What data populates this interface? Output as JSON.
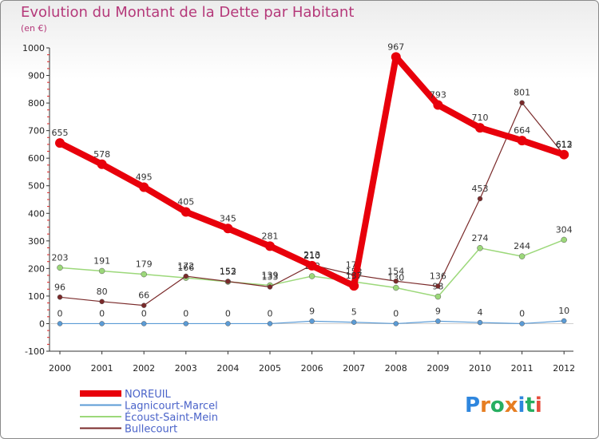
{
  "chart_data": {
    "type": "line",
    "title": "Evolution du Montant de la Dette par Habitant",
    "subtitle": "(en €)",
    "categories": [
      "2000",
      "2001",
      "2002",
      "2003",
      "2004",
      "2005",
      "2006",
      "2007",
      "2008",
      "2009",
      "2010",
      "2011",
      "2012"
    ],
    "ylim": [
      -100,
      1000
    ],
    "yticks": [
      -100,
      0,
      100,
      200,
      300,
      400,
      500,
      600,
      700,
      800,
      900,
      1000
    ],
    "grid": false,
    "legend_position": "bottom-left",
    "series": [
      {
        "name": "NOREUIL",
        "color": "#e8000b",
        "values": [
          655,
          578,
          495,
          405,
          345,
          281,
          210,
          137,
          967,
          793,
          710,
          664,
          613
        ],
        "labels": [
          "655",
          "578",
          "495",
          "405",
          "345",
          "281",
          "210",
          "137",
          "967",
          "793",
          "710",
          "664",
          "613"
        ]
      },
      {
        "name": "Lagnicourt-Marcel",
        "color": "#5b9bd5",
        "values": [
          0,
          0,
          0,
          0,
          0,
          0,
          9,
          5,
          0,
          9,
          4,
          0,
          10
        ],
        "labels": [
          "0",
          "0",
          "0",
          "0",
          "0",
          "0",
          "9",
          "5",
          "0",
          "9",
          "4",
          "0",
          "10"
        ]
      },
      {
        "name": "Écoust-Saint-Mein",
        "color": "#9cd87a",
        "values": [
          203,
          191,
          179,
          166,
          152,
          139,
          172,
          152,
          130,
          98,
          274,
          244,
          304
        ],
        "labels": [
          "203",
          "191",
          "179",
          "166",
          "152",
          "139",
          "172",
          "152",
          "130",
          "98",
          "274",
          "244",
          "304"
        ]
      },
      {
        "name": "Bullecourt",
        "color": "#7a2a2a",
        "values": [
          96,
          80,
          66,
          172,
          153,
          133,
          213,
          177,
          154,
          136,
          453,
          801,
          612
        ],
        "labels": [
          "96",
          "80",
          "66",
          "172",
          "153",
          "133",
          "213",
          "177",
          "154",
          "136",
          "453",
          "801",
          "612"
        ]
      }
    ]
  },
  "brand": {
    "logo_text": "Proxiti"
  }
}
